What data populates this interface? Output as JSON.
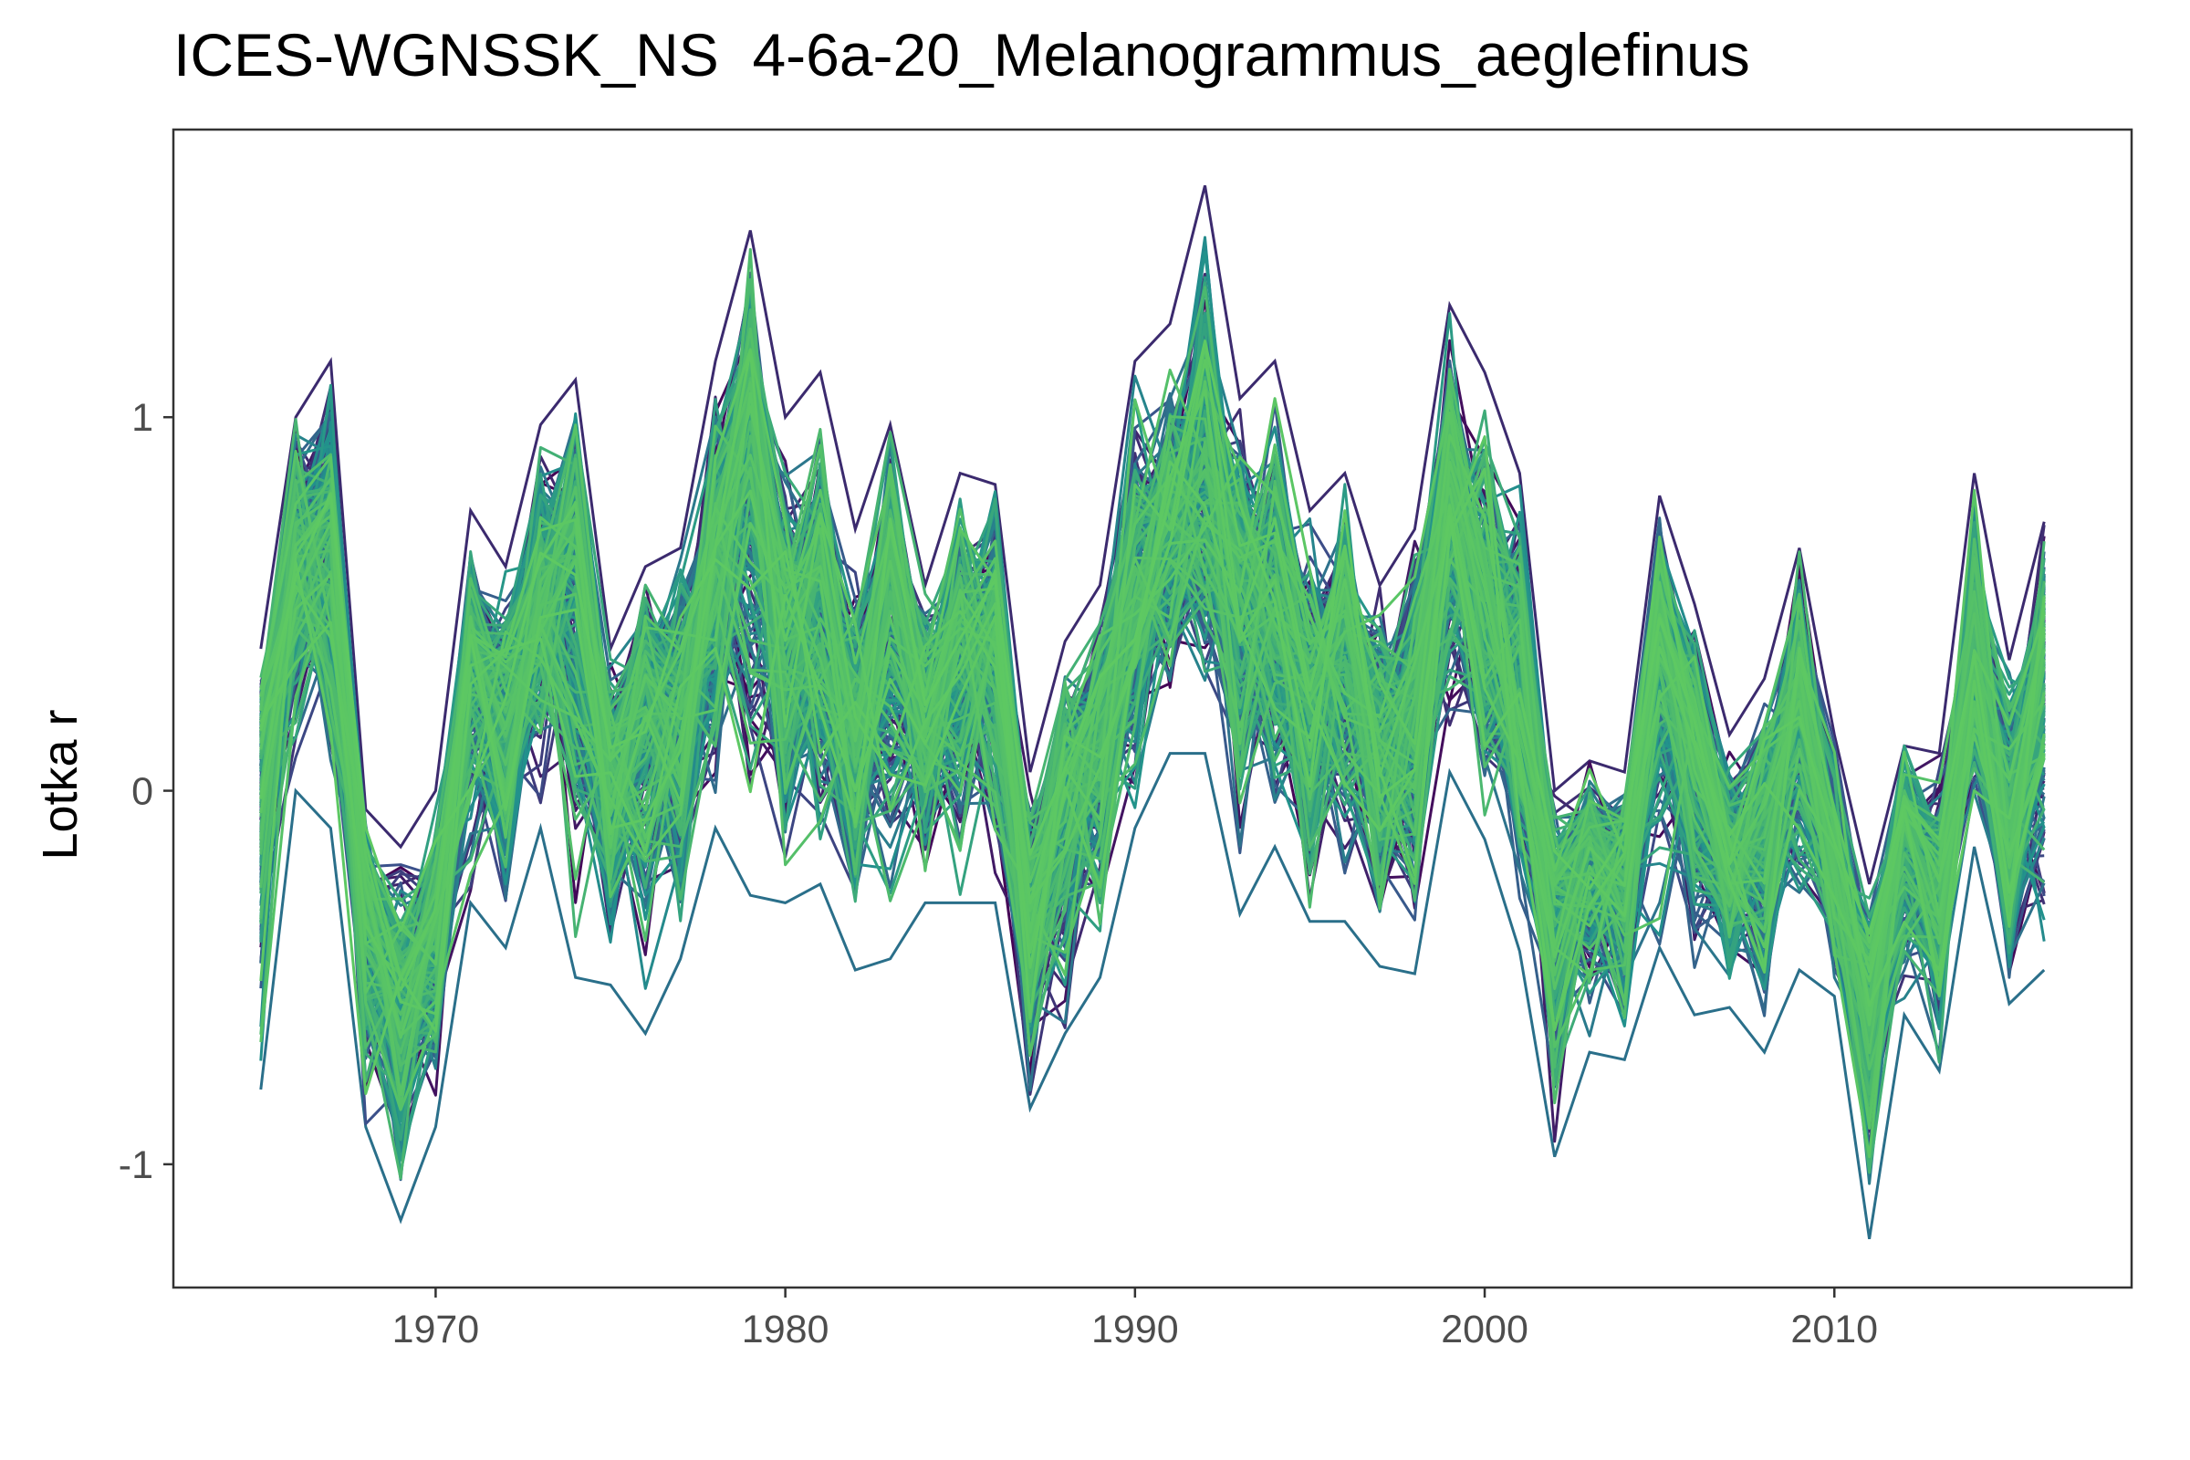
{
  "chart_data": {
    "type": "line",
    "title": "ICES-WGNSSK_NS  4-6a-20_Melanogrammus_aeglefinus",
    "ylabel": "Lotka r",
    "xlabel": "",
    "xlim": [
      1962.5,
      2018.5
    ],
    "ylim": [
      -1.33,
      1.77
    ],
    "x_ticks": [
      "1970",
      "1980",
      "1990",
      "2000",
      "2010"
    ],
    "x_tick_values": [
      1970,
      1980,
      1990,
      2000,
      2010
    ],
    "y_ticks": [
      "-1",
      "0",
      "1"
    ],
    "y_tick_values": [
      -1,
      0,
      1
    ],
    "grid": false,
    "legend": "none",
    "color_scale": [
      "#440154",
      "#3b528b",
      "#21918c",
      "#5ec962"
    ],
    "series_count": 300,
    "x": [
      1965,
      1966,
      1967,
      1968,
      1969,
      1970,
      1971,
      1972,
      1973,
      1974,
      1975,
      1976,
      1977,
      1978,
      1979,
      1980,
      1981,
      1982,
      1983,
      1984,
      1985,
      1986,
      1987,
      1988,
      1989,
      1990,
      1991,
      1992,
      1993,
      1994,
      1995,
      1996,
      1997,
      1998,
      1999,
      2000,
      2001,
      2002,
      2003,
      2004,
      2005,
      2006,
      2007,
      2008,
      2009,
      2010,
      2011,
      2012,
      2013,
      2014,
      2015,
      2016
    ],
    "central_values": [
      0.1,
      0.65,
      0.7,
      -0.3,
      -0.55,
      -0.35,
      0.35,
      0.2,
      0.55,
      0.65,
      0.0,
      0.3,
      0.25,
      0.6,
      1.05,
      0.4,
      0.55,
      0.15,
      0.55,
      0.2,
      0.4,
      0.45,
      -0.35,
      0.0,
      0.15,
      0.55,
      0.7,
      0.85,
      0.55,
      0.5,
      0.25,
      0.45,
      0.1,
      0.25,
      0.85,
      0.45,
      0.3,
      -0.3,
      -0.15,
      -0.2,
      0.45,
      0.1,
      -0.2,
      -0.1,
      0.3,
      -0.2,
      -0.55,
      -0.1,
      -0.25,
      0.4,
      -0.1,
      0.4
    ],
    "upper_envelope": [
      0.38,
      1.0,
      1.15,
      -0.05,
      -0.15,
      0.0,
      0.75,
      0.6,
      0.98,
      1.1,
      0.38,
      0.6,
      0.65,
      1.15,
      1.5,
      1.0,
      1.12,
      0.7,
      0.98,
      0.55,
      0.85,
      0.82,
      0.05,
      0.4,
      0.55,
      1.15,
      1.25,
      1.62,
      1.05,
      1.15,
      0.75,
      0.85,
      0.55,
      0.7,
      1.3,
      1.12,
      0.85,
      0.0,
      0.08,
      0.05,
      0.79,
      0.5,
      0.15,
      0.3,
      0.65,
      0.15,
      -0.25,
      0.12,
      0.1,
      0.85,
      0.35,
      0.72
    ],
    "lower_envelope": [
      -0.8,
      0.0,
      -0.1,
      -0.9,
      -1.15,
      -0.9,
      -0.3,
      -0.42,
      -0.1,
      -0.5,
      -0.52,
      -0.65,
      -0.45,
      -0.1,
      -0.28,
      -0.3,
      -0.25,
      -0.48,
      -0.45,
      -0.3,
      -0.3,
      -0.3,
      -0.85,
      -0.65,
      -0.5,
      -0.1,
      0.1,
      0.1,
      -0.33,
      -0.15,
      -0.35,
      -0.35,
      -0.47,
      -0.49,
      0.05,
      -0.13,
      -0.43,
      -0.98,
      -0.7,
      -0.72,
      -0.42,
      -0.6,
      -0.58,
      -0.7,
      -0.48,
      -0.55,
      -1.2,
      -0.6,
      -0.75,
      -0.15,
      -0.57,
      -0.48
    ]
  }
}
